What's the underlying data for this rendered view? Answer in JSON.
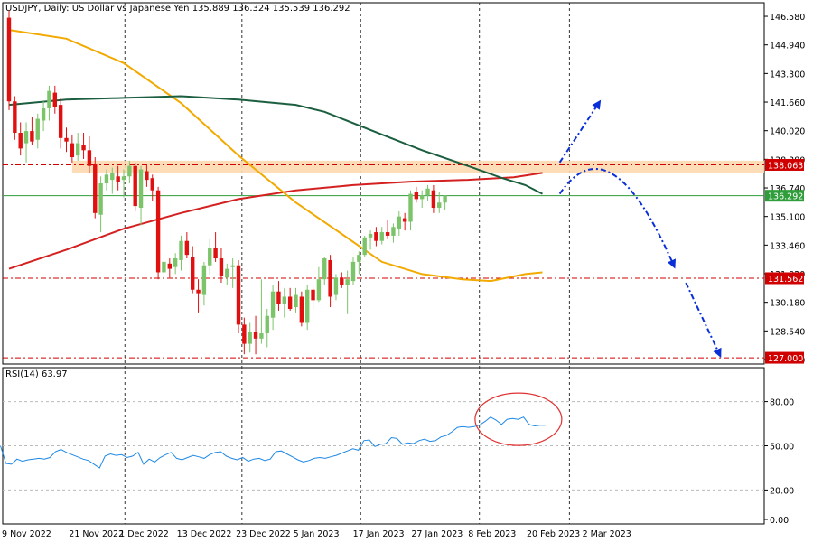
{
  "header": {
    "symbol": "USDJPY, Daily:  US Dollar vs Japanese Yen  135.889 136.324 135.539 136.292",
    "rsi_label": "RSI(14) 63.97"
  },
  "colors": {
    "bull": "#26a69a",
    "bull_fill": "#7cc46a",
    "bear": "#e01010",
    "ma_fast": "#f2a900",
    "ma_mid": "#1b5e40",
    "ma_slow": "#d42020",
    "rsi_line": "#1e88e5",
    "arrow": "#0a2fd6",
    "zone": "#fcd9b0",
    "level_red": "#d00000",
    "level_green": "#2e9d3a",
    "circle": "#e03030"
  },
  "chart_data": [
    {
      "type": "candlestick",
      "title": "USDJPY, Daily:  US Dollar vs Japanese Yen",
      "ylim": [
        126.9,
        147.1
      ],
      "y_ticks": [
        "146.580",
        "144.940",
        "143.300",
        "141.660",
        "140.020",
        "138.380",
        "136.740",
        "135.100",
        "133.460",
        "131.820",
        "130.180",
        "128.540",
        "126.900"
      ],
      "x_ticks": [
        "9 Nov 2022",
        "21 Nov 2022",
        "1 Dec 2022",
        "13 Dec 2022",
        "23 Dec 2022",
        "5 Jan 2023",
        "17 Jan 2023",
        "27 Jan 2023",
        "8 Feb 2023",
        "20 Feb 2023",
        "2 Mar 2023"
      ],
      "price_labels": [
        {
          "value": 138.063,
          "text": "138.063",
          "kind": "red"
        },
        {
          "value": 136.292,
          "text": "136.292",
          "kind": "green"
        },
        {
          "value": 131.562,
          "text": "131.562",
          "kind": "red"
        },
        {
          "value": 127.0,
          "text": "127.000",
          "kind": "red"
        }
      ],
      "zone": [
        137.6,
        138.3
      ],
      "candles": [
        [
          146.5,
          146.9,
          141.2,
          141.7
        ],
        [
          141.7,
          142.0,
          139.5,
          139.9
        ],
        [
          139.9,
          140.5,
          138.6,
          139.0
        ],
        [
          139.3,
          140.5,
          138.2,
          140.0
        ],
        [
          140.0,
          140.8,
          139.2,
          139.4
        ],
        [
          139.5,
          141.0,
          139.0,
          140.7
        ],
        [
          140.6,
          141.7,
          140.0,
          141.3
        ],
        [
          141.3,
          142.6,
          140.6,
          142.3
        ],
        [
          142.2,
          142.6,
          141.0,
          141.4
        ],
        [
          141.5,
          141.9,
          139.0,
          139.6
        ],
        [
          139.6,
          140.2,
          138.8,
          139.4
        ],
        [
          139.3,
          139.8,
          138.2,
          138.5
        ],
        [
          138.6,
          139.9,
          138.3,
          139.3
        ],
        [
          139.2,
          139.9,
          138.4,
          138.9
        ],
        [
          138.9,
          139.7,
          137.6,
          138.0
        ],
        [
          138.1,
          138.5,
          135.0,
          135.3
        ],
        [
          135.2,
          137.4,
          134.2,
          137.0
        ],
        [
          137.0,
          137.8,
          136.6,
          137.5
        ],
        [
          137.2,
          137.9,
          136.4,
          137.6
        ],
        [
          137.4,
          138.0,
          136.6,
          137.1
        ],
        [
          137.2,
          137.8,
          136.2,
          137.4
        ],
        [
          137.4,
          138.3,
          137.0,
          138.0
        ],
        [
          138.0,
          138.2,
          135.4,
          135.7
        ],
        [
          135.6,
          138.0,
          134.6,
          137.8
        ],
        [
          137.7,
          138.1,
          136.8,
          137.2
        ],
        [
          137.3,
          137.5,
          136.0,
          136.6
        ],
        [
          136.6,
          136.8,
          131.5,
          131.9
        ],
        [
          131.9,
          132.7,
          131.6,
          132.5
        ],
        [
          132.4,
          132.7,
          131.6,
          132.1
        ],
        [
          132.2,
          133.0,
          131.8,
          132.7
        ],
        [
          132.6,
          134.0,
          132.0,
          133.7
        ],
        [
          133.7,
          134.2,
          132.7,
          132.9
        ],
        [
          132.8,
          133.4,
          130.7,
          130.9
        ],
        [
          130.9,
          131.5,
          129.6,
          130.7
        ],
        [
          130.6,
          132.5,
          130.0,
          132.3
        ],
        [
          132.3,
          133.8,
          131.8,
          133.3
        ],
        [
          133.3,
          134.2,
          132.5,
          132.7
        ],
        [
          132.7,
          133.3,
          131.3,
          131.7
        ],
        [
          131.6,
          132.4,
          131.2,
          132.1
        ],
        [
          132.2,
          132.7,
          131.0,
          132.3
        ],
        [
          132.3,
          132.6,
          128.4,
          128.9
        ],
        [
          128.9,
          129.3,
          127.2,
          127.8
        ],
        [
          127.8,
          129.0,
          127.3,
          128.5
        ],
        [
          128.5,
          129.4,
          127.2,
          128.1
        ],
        [
          128.1,
          131.5,
          127.8,
          128.4
        ],
        [
          128.4,
          129.8,
          127.6,
          129.4
        ],
        [
          129.3,
          131.2,
          128.6,
          130.8
        ],
        [
          130.8,
          131.4,
          129.7,
          130.1
        ],
        [
          130.1,
          131.0,
          129.3,
          130.5
        ],
        [
          130.5,
          131.0,
          129.7,
          129.8
        ],
        [
          129.9,
          131.0,
          129.6,
          130.6
        ],
        [
          130.5,
          130.8,
          128.8,
          129.0
        ],
        [
          129.0,
          131.2,
          128.6,
          130.9
        ],
        [
          130.9,
          131.2,
          129.8,
          130.3
        ],
        [
          130.3,
          132.2,
          130.2,
          131.5
        ],
        [
          131.5,
          132.8,
          131.2,
          132.7
        ],
        [
          132.6,
          132.9,
          129.9,
          130.5
        ],
        [
          130.6,
          131.8,
          130.3,
          131.6
        ],
        [
          131.6,
          131.9,
          131.0,
          131.2
        ],
        [
          131.2,
          132.0,
          129.5,
          131.5
        ],
        [
          131.4,
          132.8,
          131.2,
          132.5
        ],
        [
          132.5,
          133.1,
          131.8,
          132.9
        ],
        [
          132.9,
          134.0,
          132.8,
          133.9
        ],
        [
          133.9,
          134.3,
          133.2,
          134.1
        ],
        [
          134.2,
          134.5,
          133.4,
          133.7
        ],
        [
          133.7,
          134.5,
          133.5,
          134.2
        ],
        [
          134.2,
          134.9,
          133.8,
          134.0
        ],
        [
          134.0,
          134.7,
          133.6,
          134.5
        ],
        [
          134.4,
          135.4,
          134.0,
          135.1
        ],
        [
          135.0,
          135.3,
          134.3,
          134.8
        ],
        [
          134.8,
          136.6,
          134.3,
          136.4
        ],
        [
          136.5,
          136.8,
          135.9,
          136.1
        ],
        [
          136.1,
          136.6,
          135.6,
          136.3
        ],
        [
          136.3,
          136.9,
          136.0,
          136.7
        ],
        [
          136.6,
          136.9,
          135.3,
          135.6
        ],
        [
          135.6,
          136.5,
          135.3,
          135.9
        ],
        [
          135.9,
          136.3,
          135.5,
          136.3
        ]
      ],
      "ma_fast": [
        [
          0,
          145.8
        ],
        [
          10,
          145.3
        ],
        [
          20,
          143.9
        ],
        [
          30,
          141.6
        ],
        [
          40,
          138.6
        ],
        [
          50,
          135.9
        ],
        [
          58,
          134.1
        ],
        [
          65,
          132.5
        ],
        [
          72,
          131.8
        ],
        [
          79,
          131.5
        ],
        [
          84,
          131.4
        ],
        [
          90,
          131.8
        ],
        [
          93,
          131.9
        ]
      ],
      "ma_mid": [
        [
          0,
          141.5
        ],
        [
          10,
          141.8
        ],
        [
          20,
          141.9
        ],
        [
          30,
          142.0
        ],
        [
          40,
          141.8
        ],
        [
          50,
          141.5
        ],
        [
          55,
          141.1
        ],
        [
          65,
          139.8
        ],
        [
          72,
          138.9
        ],
        [
          80,
          138.0
        ],
        [
          86,
          137.3
        ],
        [
          90,
          136.9
        ],
        [
          93,
          136.4
        ]
      ],
      "ma_slow": [
        [
          0,
          132.1
        ],
        [
          10,
          133.2
        ],
        [
          20,
          134.4
        ],
        [
          30,
          135.3
        ],
        [
          40,
          136.1
        ],
        [
          50,
          136.6
        ],
        [
          60,
          136.9
        ],
        [
          70,
          137.1
        ],
        [
          80,
          137.2
        ],
        [
          88,
          137.35
        ],
        [
          93,
          137.6
        ]
      ],
      "arrows": [
        {
          "from": [
            96,
            138.2
          ],
          "to": [
            103,
            141.7
          ],
          "kind": "straight"
        },
        {
          "from": [
            96,
            136.4
          ],
          "via": [
            108,
            138.6
          ],
          "to": [
            116,
            132.2
          ],
          "kind": "curved"
        },
        {
          "from": [
            118,
            131.3
          ],
          "to": [
            124,
            127.1
          ],
          "kind": "straight"
        }
      ]
    },
    {
      "type": "line",
      "title": "RSI(14) 63.97",
      "ylim": [
        0,
        100
      ],
      "y_ticks": [
        "80.00",
        "50.00",
        "20.00",
        "0.00"
      ],
      "values": [
        50.0,
        38.0,
        37.5,
        41.0,
        39.5,
        40.5,
        41.0,
        41.5,
        41.0,
        42.0,
        46.0,
        47.5,
        45.5,
        44.0,
        42.5,
        41.0,
        40.0,
        37.5,
        35.0,
        43.0,
        44.5,
        43.5,
        44.0,
        42.0,
        43.0,
        45.5,
        37.5,
        41.0,
        39.0,
        42.0,
        44.0,
        45.5,
        41.5,
        40.5,
        42.0,
        43.5,
        42.5,
        41.5,
        44.0,
        45.5,
        46.0,
        43.0,
        41.5,
        40.5,
        42.0,
        39.5,
        41.0,
        41.5,
        40.0,
        41.0,
        46.0,
        46.5,
        44.5,
        42.5,
        40.5,
        39.0,
        40.0,
        41.5,
        42.0,
        41.5,
        42.5,
        43.5,
        45.0,
        46.5,
        48.0,
        47.0,
        53.5,
        54.0,
        49.5,
        51.0,
        51.5,
        55.5,
        55.0,
        51.0,
        52.0,
        51.5,
        53.5,
        54.5,
        53.0,
        53.5,
        56.0,
        57.0,
        59.5,
        62.5,
        63.0,
        62.5,
        63.0,
        64.0,
        66.5,
        69.5,
        67.5,
        64.5,
        68.0,
        68.5,
        68.0,
        69.5,
        64.5,
        63.5,
        63.9,
        64.0
      ]
    }
  ]
}
